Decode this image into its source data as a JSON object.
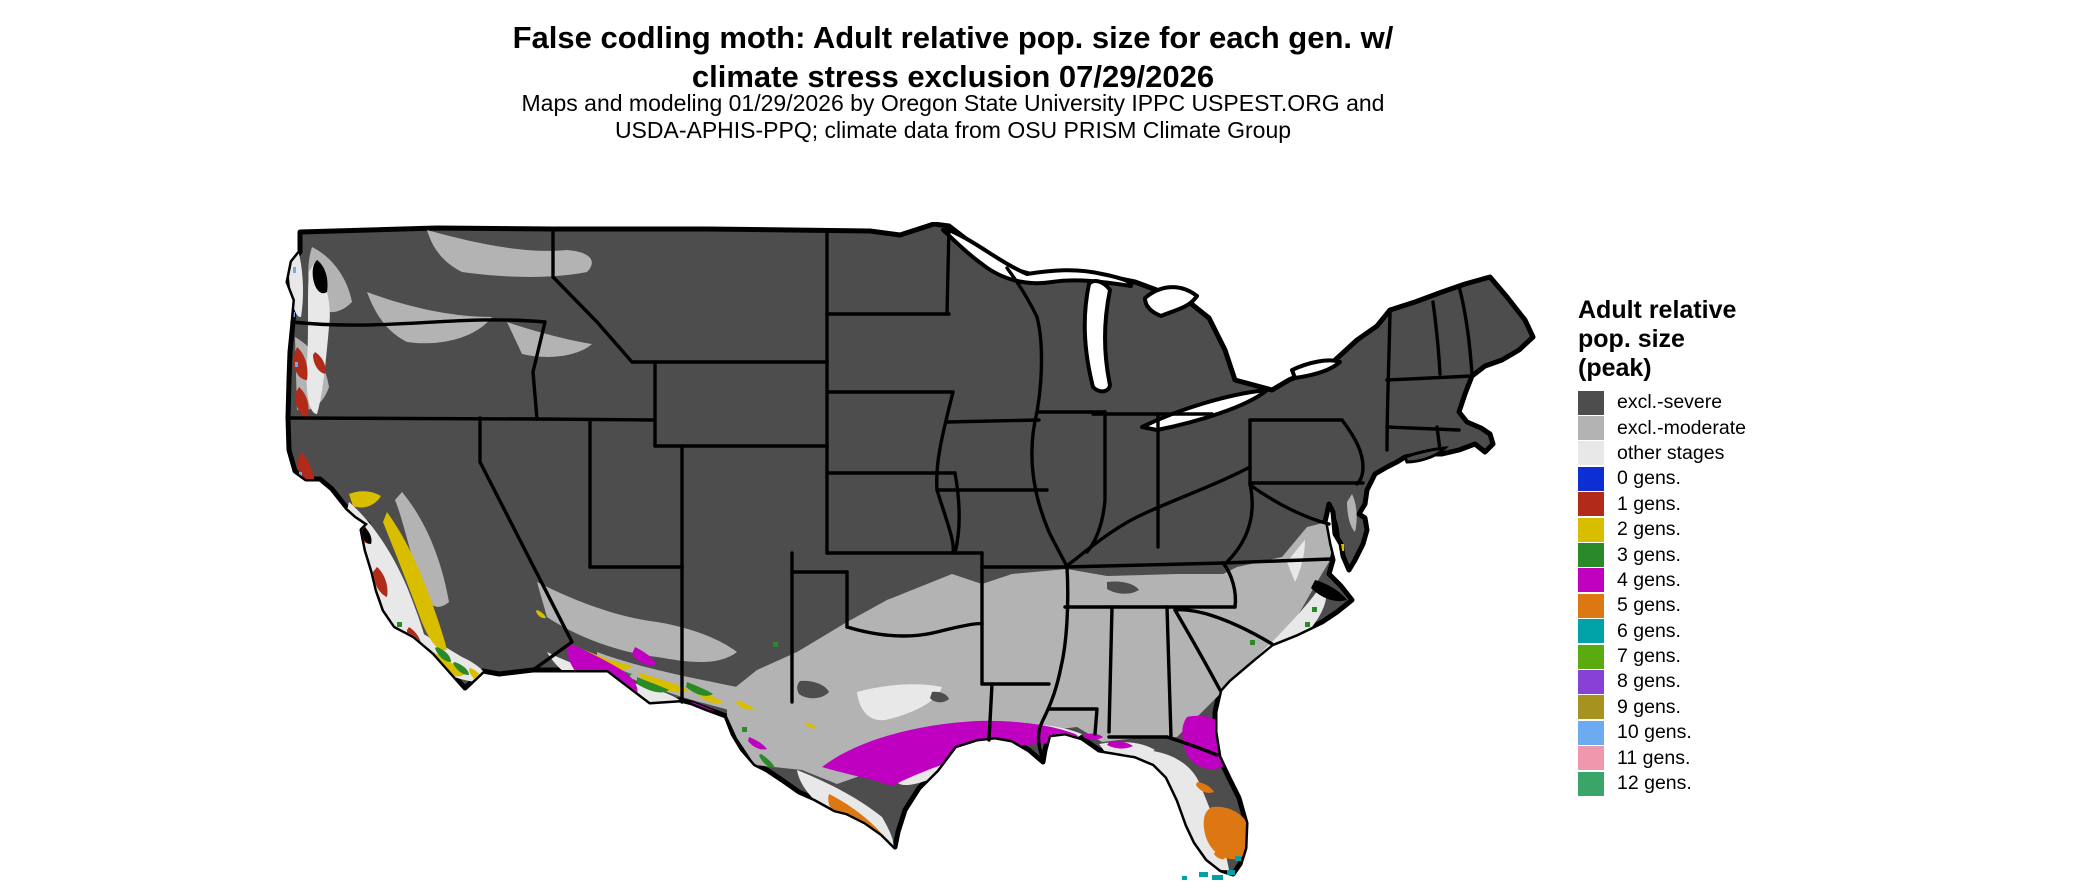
{
  "header": {
    "title_line1": "False codling moth: Adult relative pop. size for each gen. w/",
    "title_line2": "climate stress exclusion 07/29/2026",
    "subtitle_line1": "Maps and modeling 01/29/2026 by Oregon State University IPPC USPEST.ORG and",
    "subtitle_line2": "USDA-APHIS-PPQ; climate data from OSU PRISM Climate Group"
  },
  "legend": {
    "title_line1": "Adult relative",
    "title_line2": "pop. size",
    "title_line3": "(peak)",
    "items": [
      {
        "key": "excl-severe",
        "label": "excl.-severe",
        "color": "#4d4d4d"
      },
      {
        "key": "excl-moderate",
        "label": "excl.-moderate",
        "color": "#b3b3b3"
      },
      {
        "key": "other-stages",
        "label": "other stages",
        "color": "#e8e8e8"
      },
      {
        "key": "0-gens",
        "label": "0 gens.",
        "color": "#0d2ed3"
      },
      {
        "key": "1-gens",
        "label": "1 gens.",
        "color": "#b22a18"
      },
      {
        "key": "2-gens",
        "label": "2 gens.",
        "color": "#d9be00"
      },
      {
        "key": "3-gens",
        "label": "3 gens.",
        "color": "#2b8a28"
      },
      {
        "key": "4-gens",
        "label": "4 gens.",
        "color": "#c000c0"
      },
      {
        "key": "5-gens",
        "label": "5 gens.",
        "color": "#dd7712"
      },
      {
        "key": "6-gens",
        "label": "6 gens.",
        "color": "#00a2a8"
      },
      {
        "key": "7-gens",
        "label": "7 gens.",
        "color": "#5aab10"
      },
      {
        "key": "8-gens",
        "label": "8 gens.",
        "color": "#8841d6"
      },
      {
        "key": "9-gens",
        "label": "9 gens.",
        "color": "#a6921f"
      },
      {
        "key": "10-gens",
        "label": "10 gens.",
        "color": "#6cabef"
      },
      {
        "key": "11-gens",
        "label": "11 gens.",
        "color": "#ef97ac"
      },
      {
        "key": "12-gens",
        "label": "12 gens.",
        "color": "#3aa569"
      }
    ]
  },
  "map": {
    "background": "#ffffff",
    "border_color": "#000000",
    "water_color": "#000000"
  }
}
